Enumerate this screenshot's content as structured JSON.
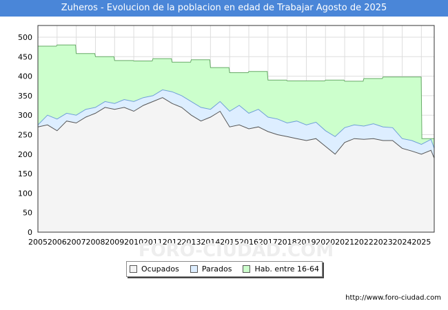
{
  "chart_data": {
    "type": "area",
    "title": "Zuheros - Evolucion de la poblacion en edad de Trabajar Agosto de 2025",
    "xlabel": "",
    "ylabel": "",
    "ylim": [
      0,
      530
    ],
    "xlim": [
      2005,
      2025.67
    ],
    "y_ticks": [
      "0",
      "50",
      "100",
      "150",
      "200",
      "250",
      "300",
      "350",
      "400",
      "450",
      "500"
    ],
    "x_ticks": [
      "2005",
      "2006",
      "2007",
      "2008",
      "2009",
      "2010",
      "2011",
      "2012",
      "2013",
      "2014",
      "2015",
      "2016",
      "2017",
      "2018",
      "2019",
      "2020",
      "2021",
      "2022",
      "2023",
      "2024",
      "2025"
    ],
    "grid": true,
    "legend_position": "bottom-center",
    "series": [
      {
        "name": "Hab. entre 16-64",
        "color": "#ccffcc",
        "line_color": "#66aa66",
        "x": [
          2005,
          2006,
          2007,
          2008,
          2009,
          2010,
          2011,
          2012,
          2013,
          2014,
          2015,
          2016,
          2017,
          2018,
          2019,
          2020,
          2021,
          2022,
          2023,
          2024,
          2024.99
        ],
        "values": [
          477,
          480,
          458,
          450,
          440,
          439,
          445,
          436,
          442,
          422,
          409,
          412,
          390,
          388,
          388,
          390,
          387,
          394,
          398,
          398,
          398
        ]
      },
      {
        "name": "Parados",
        "color": "#ddeeff",
        "line_color": "#6f9fd8",
        "x": [
          2005,
          2005.5,
          2006,
          2006.5,
          2007,
          2007.5,
          2008,
          2008.5,
          2009,
          2009.5,
          2010,
          2010.5,
          2011,
          2011.5,
          2012,
          2012.5,
          2013,
          2013.5,
          2014,
          2014.5,
          2015,
          2015.5,
          2016,
          2016.5,
          2017,
          2017.5,
          2018,
          2018.5,
          2019,
          2019.5,
          2020,
          2020.5,
          2021,
          2021.5,
          2022,
          2022.5,
          2023,
          2023.5,
          2024,
          2024.5,
          2025,
          2025.5,
          2025.67
        ],
        "values": [
          275,
          300,
          290,
          305,
          300,
          315,
          320,
          335,
          330,
          340,
          335,
          345,
          350,
          365,
          360,
          350,
          335,
          320,
          315,
          335,
          310,
          325,
          305,
          315,
          295,
          290,
          280,
          285,
          275,
          282,
          260,
          245,
          268,
          275,
          272,
          278,
          270,
          268,
          240,
          235,
          225,
          238,
          215
        ]
      },
      {
        "name": "Ocupados",
        "color": "#f4f4f4",
        "line_color": "#555555",
        "x": [
          2005,
          2005.5,
          2006,
          2006.5,
          2007,
          2007.5,
          2008,
          2008.5,
          2009,
          2009.5,
          2010,
          2010.5,
          2011,
          2011.5,
          2012,
          2012.5,
          2013,
          2013.5,
          2014,
          2014.5,
          2015,
          2015.5,
          2016,
          2016.5,
          2017,
          2017.5,
          2018,
          2018.5,
          2019,
          2019.5,
          2020,
          2020.5,
          2021,
          2021.5,
          2022,
          2022.5,
          2023,
          2023.5,
          2024,
          2024.5,
          2025,
          2025.5,
          2025.67
        ],
        "values": [
          270,
          275,
          260,
          285,
          280,
          295,
          305,
          320,
          315,
          320,
          310,
          325,
          335,
          345,
          330,
          320,
          300,
          285,
          295,
          310,
          270,
          275,
          265,
          270,
          258,
          250,
          245,
          240,
          235,
          240,
          220,
          200,
          230,
          240,
          238,
          240,
          235,
          235,
          215,
          208,
          200,
          210,
          190
        ]
      }
    ]
  },
  "legend": {
    "items": [
      {
        "label": "Ocupados",
        "color": "#f4f4f4"
      },
      {
        "label": "Parados",
        "color": "#ddeeff"
      },
      {
        "label": "Hab. entre 16-64",
        "color": "#ccffcc"
      }
    ]
  },
  "source": "http://www.foro-ciudad.com",
  "watermark": "FORO-CIUDAD.COM"
}
